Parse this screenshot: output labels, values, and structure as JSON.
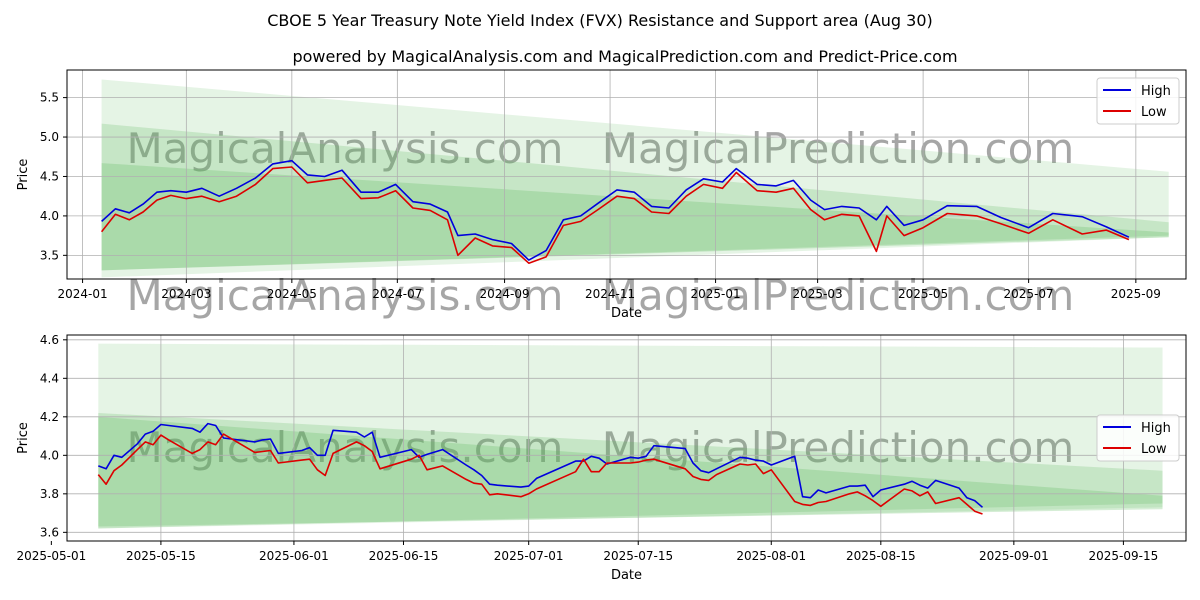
{
  "title": "CBOE 5 Year Treasury Note Yield Index (FVX) Resistance and Support area (Aug 30)",
  "subtitle": "powered by MagicalAnalysis.com and MagicalPrediction.com and Predict-Price.com",
  "watermarks": [
    "MagicalAnalysis.com",
    "MagicalPrediction.com"
  ],
  "colors": {
    "high": "#0000dd",
    "low": "#dd0000",
    "band": "#5cb85c"
  },
  "chart_data": [
    {
      "type": "line",
      "title": "",
      "xlabel": "Date",
      "ylabel": "Price",
      "xlim": [
        "2023-12-23",
        "2025-09-30"
      ],
      "ylim": [
        3.2,
        5.85
      ],
      "x_ticks": [
        "2024-01",
        "2024-03",
        "2024-05",
        "2024-07",
        "2024-09",
        "2024-11",
        "2025-01",
        "2025-03",
        "2025-05",
        "2025-07",
        "2025-09"
      ],
      "y_ticks": [
        "3.5",
        "4.0",
        "4.5",
        "5.0",
        "5.5"
      ],
      "grid": true,
      "legend": "top-right",
      "bands": [
        {
          "x": [
            "2024-01-12",
            "2025-09-20"
          ],
          "upper": [
            5.73,
            4.56
          ],
          "lower": [
            3.22,
            3.73
          ],
          "opacity": 0.16
        },
        {
          "x": [
            "2024-01-12",
            "2025-09-20"
          ],
          "upper": [
            5.17,
            3.92
          ],
          "lower": [
            3.31,
            3.75
          ],
          "opacity": 0.22
        },
        {
          "x": [
            "2024-01-12",
            "2025-09-20"
          ],
          "upper": [
            4.67,
            3.79
          ],
          "lower": [
            3.31,
            3.73
          ],
          "opacity": 0.26
        }
      ],
      "x": [
        "2024-01-12",
        "2024-01-20",
        "2024-01-28",
        "2024-02-05",
        "2024-02-13",
        "2024-02-21",
        "2024-03-01",
        "2024-03-10",
        "2024-03-20",
        "2024-03-30",
        "2024-04-10",
        "2024-04-20",
        "2024-05-01",
        "2024-05-10",
        "2024-05-20",
        "2024-05-30",
        "2024-06-10",
        "2024-06-20",
        "2024-06-30",
        "2024-07-10",
        "2024-07-20",
        "2024-07-30",
        "2024-08-05",
        "2024-08-15",
        "2024-08-25",
        "2024-09-05",
        "2024-09-15",
        "2024-09-25",
        "2024-10-05",
        "2024-10-15",
        "2024-10-25",
        "2024-11-05",
        "2024-11-15",
        "2024-11-25",
        "2024-12-05",
        "2024-12-15",
        "2024-12-25",
        "2025-01-05",
        "2025-01-13",
        "2025-01-25",
        "2025-02-05",
        "2025-02-15",
        "2025-02-25",
        "2025-03-05",
        "2025-03-15",
        "2025-03-25",
        "2025-04-04",
        "2025-04-10",
        "2025-04-20",
        "2025-05-01",
        "2025-05-15",
        "2025-06-01",
        "2025-06-15",
        "2025-07-01",
        "2025-07-15",
        "2025-08-01",
        "2025-08-15",
        "2025-08-28"
      ],
      "series": [
        {
          "name": "High",
          "values": [
            3.93,
            4.09,
            4.04,
            4.15,
            4.3,
            4.32,
            4.3,
            4.35,
            4.25,
            4.35,
            4.48,
            4.66,
            4.7,
            4.52,
            4.5,
            4.58,
            4.3,
            4.3,
            4.4,
            4.18,
            4.15,
            4.05,
            3.75,
            3.77,
            3.7,
            3.65,
            3.44,
            3.56,
            3.95,
            4.0,
            4.16,
            4.33,
            4.3,
            4.12,
            4.1,
            4.33,
            4.47,
            4.43,
            4.6,
            4.4,
            4.38,
            4.45,
            4.2,
            4.08,
            4.12,
            4.1,
            3.95,
            4.12,
            3.88,
            3.95,
            4.13,
            4.12,
            3.98,
            3.85,
            4.03,
            3.99,
            3.86,
            3.73
          ]
        },
        {
          "name": "Low",
          "values": [
            3.8,
            4.02,
            3.95,
            4.05,
            4.2,
            4.26,
            4.22,
            4.25,
            4.18,
            4.25,
            4.4,
            4.6,
            4.62,
            4.42,
            4.45,
            4.48,
            4.22,
            4.23,
            4.32,
            4.1,
            4.07,
            3.95,
            3.5,
            3.72,
            3.62,
            3.6,
            3.4,
            3.48,
            3.88,
            3.93,
            4.08,
            4.25,
            4.22,
            4.05,
            4.03,
            4.25,
            4.4,
            4.35,
            4.55,
            4.32,
            4.3,
            4.35,
            4.08,
            3.95,
            4.02,
            4.0,
            3.55,
            4.0,
            3.75,
            3.85,
            4.03,
            4.0,
            3.9,
            3.78,
            3.95,
            3.77,
            3.82,
            3.7
          ]
        }
      ]
    },
    {
      "type": "line",
      "title": "",
      "xlabel": "Date",
      "ylabel": "Price",
      "xlim": [
        "2025-05-03",
        "2025-09-23"
      ],
      "ylim": [
        3.555,
        4.625
      ],
      "x_ticks": [
        "2025-05-01",
        "2025-05-15",
        "2025-06-01",
        "2025-06-15",
        "2025-07-01",
        "2025-07-15",
        "2025-08-01",
        "2025-08-15",
        "2025-09-01",
        "2025-09-15"
      ],
      "y_ticks": [
        "3.6",
        "3.8",
        "4.0",
        "4.2",
        "4.4",
        "4.6"
      ],
      "grid": true,
      "legend": "center-right",
      "bands": [
        {
          "x": [
            "2025-05-07",
            "2025-09-20"
          ],
          "upper": [
            4.58,
            4.56
          ],
          "lower": [
            3.62,
            3.73
          ],
          "opacity": 0.16
        },
        {
          "x": [
            "2025-05-07",
            "2025-09-20"
          ],
          "upper": [
            4.22,
            3.92
          ],
          "lower": [
            3.62,
            3.75
          ],
          "opacity": 0.22
        },
        {
          "x": [
            "2025-05-07",
            "2025-09-20"
          ],
          "upper": [
            4.2,
            3.79
          ],
          "lower": [
            3.63,
            3.72
          ],
          "opacity": 0.26
        }
      ],
      "x": [
        "2025-05-07",
        "2025-05-08",
        "2025-05-09",
        "2025-05-10",
        "2025-05-12",
        "2025-05-13",
        "2025-05-14",
        "2025-05-15",
        "2025-05-16",
        "2025-05-19",
        "2025-05-20",
        "2025-05-21",
        "2025-05-22",
        "2025-05-23",
        "2025-05-27",
        "2025-05-28",
        "2025-05-29",
        "2025-05-30",
        "2025-06-02",
        "2025-06-03",
        "2025-06-04",
        "2025-06-05",
        "2025-06-06",
        "2025-06-09",
        "2025-06-10",
        "2025-06-11",
        "2025-06-12",
        "2025-06-16",
        "2025-06-17",
        "2025-06-18",
        "2025-06-20",
        "2025-06-23",
        "2025-06-24",
        "2025-06-25",
        "2025-06-26",
        "2025-06-27",
        "2025-06-30",
        "2025-07-01",
        "2025-07-02",
        "2025-07-07",
        "2025-07-08",
        "2025-07-09",
        "2025-07-10",
        "2025-07-11",
        "2025-07-14",
        "2025-07-15",
        "2025-07-16",
        "2025-07-17",
        "2025-07-21",
        "2025-07-22",
        "2025-07-23",
        "2025-07-24",
        "2025-07-25",
        "2025-07-28",
        "2025-07-29",
        "2025-07-30",
        "2025-07-31",
        "2025-08-01",
        "2025-08-04",
        "2025-08-05",
        "2025-08-06",
        "2025-08-07",
        "2025-08-08",
        "2025-08-11",
        "2025-08-12",
        "2025-08-13",
        "2025-08-14",
        "2025-08-15",
        "2025-08-18",
        "2025-08-19",
        "2025-08-20",
        "2025-08-21",
        "2025-08-22",
        "2025-08-25",
        "2025-08-26",
        "2025-08-27",
        "2025-08-28"
      ],
      "series": [
        {
          "name": "High",
          "values": [
            3.945,
            3.93,
            4.0,
            3.99,
            4.06,
            4.11,
            4.125,
            4.16,
            4.155,
            4.14,
            4.12,
            4.165,
            4.155,
            4.09,
            4.07,
            4.08,
            4.085,
            4.01,
            4.025,
            4.04,
            4.0,
            4.0,
            4.13,
            4.12,
            4.095,
            4.12,
            3.99,
            4.03,
            3.99,
            4.005,
            4.03,
            3.95,
            3.925,
            3.895,
            3.85,
            3.845,
            3.835,
            3.84,
            3.88,
            3.97,
            3.97,
            3.995,
            3.985,
            3.955,
            3.99,
            3.985,
            3.995,
            4.05,
            4.035,
            3.96,
            3.92,
            3.91,
            3.93,
            3.99,
            3.985,
            3.975,
            3.97,
            3.95,
            3.995,
            3.785,
            3.78,
            3.82,
            3.805,
            3.84,
            3.84,
            3.845,
            3.785,
            3.82,
            3.85,
            3.865,
            3.845,
            3.83,
            3.87,
            3.83,
            3.78,
            3.765,
            3.73
          ]
        },
        {
          "name": "Low",
          "values": [
            3.9,
            3.85,
            3.92,
            3.95,
            4.03,
            4.07,
            4.055,
            4.105,
            4.08,
            4.01,
            4.03,
            4.07,
            4.055,
            4.11,
            4.015,
            4.02,
            4.025,
            3.96,
            3.975,
            3.98,
            3.925,
            3.895,
            4.01,
            4.07,
            4.05,
            4.02,
            3.93,
            3.98,
            4.0,
            3.925,
            3.945,
            3.875,
            3.855,
            3.85,
            3.795,
            3.8,
            3.785,
            3.8,
            3.825,
            3.915,
            3.98,
            3.915,
            3.915,
            3.96,
            3.96,
            3.965,
            3.975,
            3.98,
            3.93,
            3.89,
            3.875,
            3.87,
            3.9,
            3.955,
            3.95,
            3.955,
            3.905,
            3.925,
            3.76,
            3.745,
            3.74,
            3.755,
            3.76,
            3.8,
            3.81,
            3.79,
            3.765,
            3.735,
            3.825,
            3.815,
            3.79,
            3.81,
            3.75,
            3.78,
            3.745,
            3.71,
            3.695
          ]
        }
      ]
    }
  ]
}
